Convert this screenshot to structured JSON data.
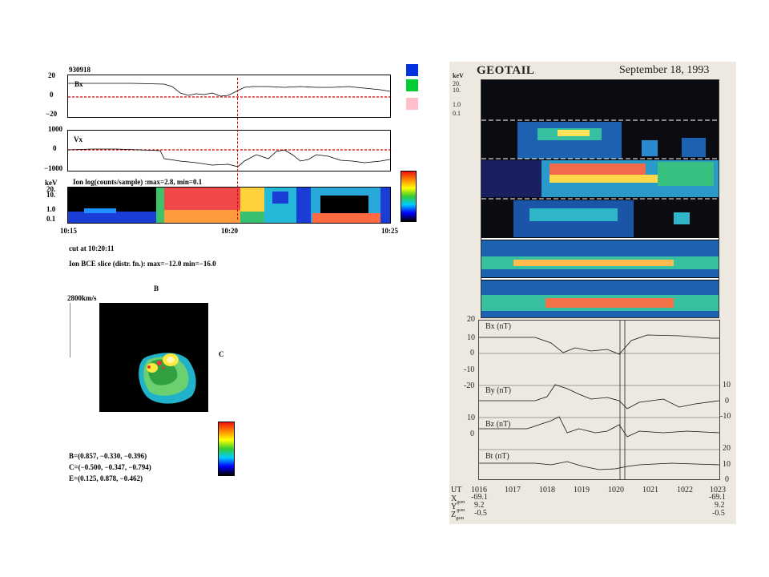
{
  "left": {
    "date_code": "930918",
    "bx": {
      "label": "Bx",
      "ticks": [
        "20",
        "0",
        "−20"
      ]
    },
    "vx": {
      "label": "Vx",
      "ticks": [
        "1000",
        "0",
        "−1000"
      ]
    },
    "spec": {
      "unit": "keV",
      "title": "Ion  log(counts/sample)  :max=2.8, min=0.1",
      "ticks": [
        "20.",
        "10.",
        "1.0",
        "0.1"
      ]
    },
    "time_axis": [
      "10:15",
      "10:20",
      "10:25"
    ],
    "cut_label": "cut at 10:20:11",
    "slice_label": "Ion  BCE slice (distr. fn.): max=−12.0 min=−16.0",
    "slice": {
      "b_label": "B",
      "c_label": "C",
      "scale": "2800km/s"
    },
    "vectors": [
      "B=(0.857, −0.330, −0.396)",
      "C=(−0.500, −0.347, −0.794)",
      "E=(0.125, 0.878, −0.462)"
    ],
    "swatches": [
      "#0033dd",
      "#00cc33",
      "#ffc0cb"
    ]
  },
  "right": {
    "title": "GEOTAIL",
    "date": "September 18, 1993",
    "unit": "keV",
    "panel_ticks": [
      "20.",
      "10.",
      "1.0",
      "0.1"
    ],
    "mag_panels": [
      {
        "label": "Bx (nT)",
        "ticks": [
          "20",
          "10",
          "0",
          "-10",
          "-20"
        ]
      },
      {
        "label": "By (nT)",
        "ticks": [
          "10",
          "0",
          "-10"
        ]
      },
      {
        "label": "Bz (nT)",
        "ticks": [
          "10",
          "0"
        ]
      },
      {
        "label": "Bt (nT)",
        "ticks": [
          "20",
          "10",
          "0"
        ]
      }
    ],
    "ut_label": "UT",
    "ut_ticks": [
      "1016",
      "1017",
      "1018",
      "1019",
      "1020",
      "1021",
      "1022",
      "1023"
    ],
    "gsm": {
      "x_label": "X",
      "y_label": "Y",
      "z_label": "Z",
      "sub": "gsm",
      "x_start": "-69.1",
      "x_end": "-69.1",
      "y_start": "9.2",
      "y_end": "9.2",
      "z_start": "-0.5",
      "z_end": "-0.5"
    }
  }
}
